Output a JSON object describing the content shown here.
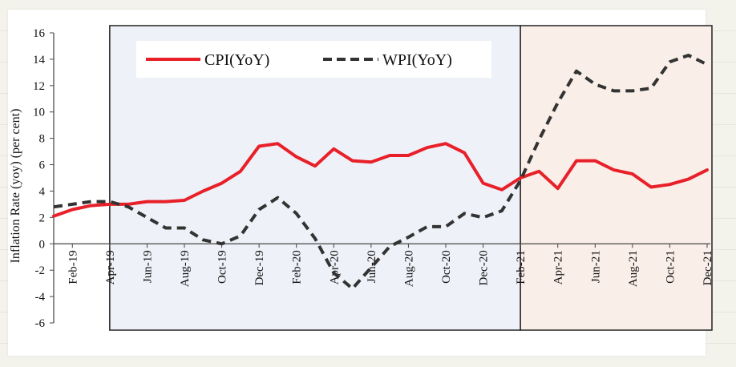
{
  "chart_data": {
    "type": "line",
    "ylabel": "Inflation Rate (yoy) (per cent)",
    "ylim": [
      -6,
      16
    ],
    "yticks": [
      "16",
      "14",
      "12",
      "10",
      "8",
      "6",
      "4",
      "2",
      "0",
      "-2",
      "-4",
      "-6"
    ],
    "x": [
      "Jan-19",
      "Feb-19",
      "Mar-19",
      "Apr-19",
      "May-19",
      "Jun-19",
      "Jul-19",
      "Aug-19",
      "Sep-19",
      "Oct-19",
      "Nov-19",
      "Dec-19",
      "Jan-20",
      "Feb-20",
      "Mar-20",
      "Apr-20",
      "May-20",
      "Jun-20",
      "Jul-20",
      "Aug-20",
      "Sep-20",
      "Oct-20",
      "Nov-20",
      "Dec-20",
      "Jan-21",
      "Feb-21",
      "Mar-21",
      "Apr-21",
      "May-21",
      "Jun-21",
      "Jul-21",
      "Aug-21",
      "Sep-21",
      "Oct-21",
      "Nov-21",
      "Dec-21"
    ],
    "xtick_labels": [
      "Feb-19",
      "Apr-19",
      "Jun-19",
      "Aug-19",
      "Oct-19",
      "Dec-19",
      "Feb-20",
      "Apr-20",
      "Jun-20",
      "Aug-20",
      "Oct-20",
      "Dec-20",
      "Feb-21",
      "Apr-21",
      "Jun-21",
      "Aug-21",
      "Oct-21",
      "Dec-21"
    ],
    "series": [
      {
        "name": "CPI(YoY)",
        "color": "#e8202a",
        "style": "solid",
        "values": [
          2.1,
          2.6,
          2.9,
          3.0,
          3.0,
          3.2,
          3.2,
          3.3,
          4.0,
          4.6,
          5.5,
          7.4,
          7.6,
          6.6,
          5.9,
          7.2,
          6.3,
          6.2,
          6.7,
          6.7,
          7.3,
          7.6,
          6.9,
          4.6,
          4.1,
          5.0,
          5.5,
          4.2,
          6.3,
          6.3,
          5.6,
          5.3,
          4.3,
          4.5,
          4.9,
          5.6
        ]
      },
      {
        "name": "WPI(YoY)",
        "color": "#333333",
        "style": "dashed",
        "values": [
          2.8,
          3.0,
          3.2,
          3.2,
          2.8,
          2.0,
          1.2,
          1.2,
          0.3,
          0.0,
          0.6,
          2.6,
          3.5,
          2.3,
          0.4,
          -2.2,
          -3.4,
          -1.8,
          -0.2,
          0.5,
          1.3,
          1.3,
          2.3,
          2.0,
          2.5,
          4.8,
          7.9,
          10.7,
          13.1,
          12.1,
          11.6,
          11.6,
          11.8,
          13.8,
          14.3,
          13.6
        ]
      }
    ],
    "shaded_regions": [
      {
        "from": "Apr-19",
        "to": "Feb-21",
        "color": "#eff1f8"
      },
      {
        "from": "Feb-21",
        "to": "Dec-21",
        "color": "#f9efe8"
      }
    ],
    "legend_position": "top-center",
    "grid": false
  }
}
